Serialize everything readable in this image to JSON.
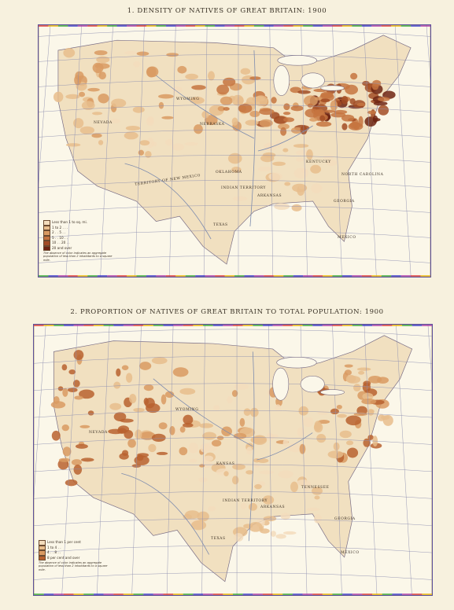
{
  "maps": [
    {
      "title": "1. DENSITY OF NATIVES OF GREAT BRITAIN: 1900",
      "legend": {
        "items": [
          {
            "label": "Less than 1 to sq. mi.",
            "color": "#f3dcbc"
          },
          {
            "label": "1 to 2 . . .",
            "color": "#e8bd8c"
          },
          {
            "label": "2 . . 5 . .",
            "color": "#d99a62"
          },
          {
            "label": "5 . . 10 . .",
            "color": "#c57440"
          },
          {
            "label": "10 . . 20 . .",
            "color": "#a24c25"
          },
          {
            "label": "20 and over",
            "color": "#6e2412"
          }
        ],
        "note": "The absence of color indicates an aggregate population of less than 2 inhabitants to a square mile."
      },
      "state_labels": [
        "WYOMING",
        "NEBRASKA",
        "NEVADA",
        "OKLAHOMA",
        "INDIAN TERRITORY",
        "ARKANSAS",
        "TEXAS",
        "GEORGIA",
        "KENTUCKY",
        "NORTH CAROLINA",
        "TERRITORY OF NEW MEXICO",
        "MEXICO"
      ]
    },
    {
      "title": "2. PROPORTION OF NATIVES OF GREAT BRITAIN TO TOTAL POPULATION: 1900",
      "legend": {
        "items": [
          {
            "label": "Less than 1 per cent",
            "color": "#f3dcbc"
          },
          {
            "label": "1 to 4 . .",
            "color": "#e8bd8c"
          },
          {
            "label": "4 . . 8 . .",
            "color": "#d99a62"
          },
          {
            "label": "8 per cent and over",
            "color": "#b8612f"
          }
        ],
        "note": "The absence of color indicates an aggregate population of less than 2 inhabitants to a square mile."
      },
      "state_labels": [
        "WYOMING",
        "NEVADA",
        "INDIAN TERRITORY",
        "ARKANSAS",
        "TEXAS",
        "GEORGIA",
        "TENNESSEE",
        "KANSAS",
        "MEXICO"
      ]
    }
  ],
  "colors": {
    "frame": "#5b4f9a",
    "paper": "#f7f1de",
    "map_bg": "#fbf7e9",
    "grid": "#8d8fb0",
    "rivers": "#7e8cae",
    "land_tint": "#f1e0c0"
  }
}
